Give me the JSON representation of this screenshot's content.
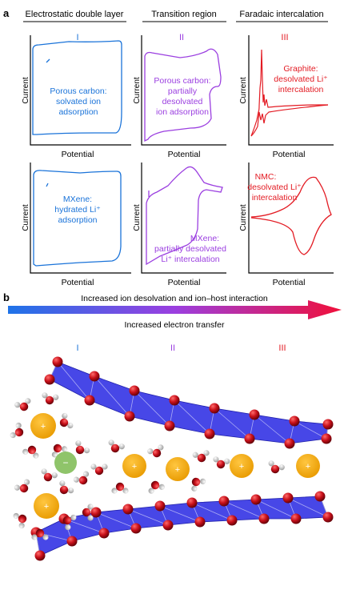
{
  "panel_a": {
    "label": "a",
    "columns": [
      {
        "header": "Electrostatic double layer",
        "roman": "I",
        "color": "#1a73d9"
      },
      {
        "header": "Transition region",
        "roman": "II",
        "color": "#9b3fe0"
      },
      {
        "header": "Faradaic intercalation",
        "roman": "III",
        "color": "#e31b23"
      }
    ],
    "axis_ylabel": "Current",
    "axis_xlabel": "Potential",
    "plots": [
      {
        "lines": [
          "Porous carbon:",
          "solvated ion",
          "adsorption"
        ]
      },
      {
        "lines": [
          "Porous carbon:",
          "partially",
          "desolvated",
          "ion adsorption"
        ]
      },
      {
        "lines": [
          "Graphite:",
          "desolvated Li⁺",
          "intercalation"
        ]
      },
      {
        "lines": [
          "MXene:",
          "hydrated Li⁺",
          "adsorption"
        ]
      },
      {
        "lines": [
          "MXene:",
          "partially desolvated",
          "Li⁺ intercalation"
        ]
      },
      {
        "lines": [
          "NMC:",
          "desolvated Li⁺",
          "intercalation"
        ]
      }
    ]
  },
  "panel_b": {
    "label": "b",
    "arrow_top_text": "Increased ion desolvation and ion–host interaction",
    "arrow_bottom_text": "Increased electron transfer",
    "arrow_colors": {
      "start": "#1e73e8",
      "mid": "#9b3fe0",
      "end": "#f0103a"
    },
    "regions": [
      "I",
      "II",
      "III"
    ],
    "cation_symbol": "+",
    "anion_symbol": "−",
    "colors": {
      "layer": "#3d3de6",
      "atom": "#c8101a",
      "cation": "#f2a900",
      "anion": "#8fc46a",
      "hydrogen": "#e6e6e6"
    }
  }
}
